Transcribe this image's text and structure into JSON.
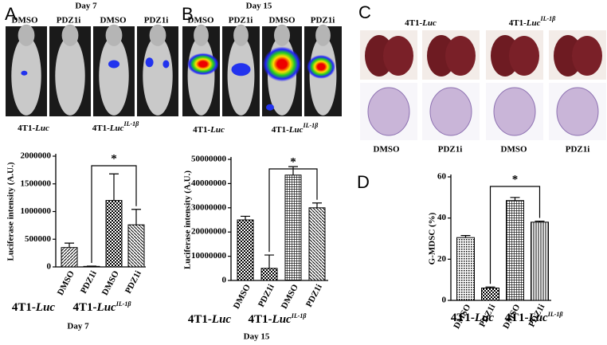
{
  "panel_a": {
    "letter": "A",
    "title": "Day 7",
    "treatments": [
      "DMSO",
      "PDZ1i",
      "DMSO",
      "PDZ1i"
    ],
    "groups": [
      {
        "prefix": "4T1-",
        "italic": "Luc"
      },
      {
        "prefix": "4T1-",
        "italic": "Luc",
        "sup": "IL-1β"
      }
    ]
  },
  "panel_b": {
    "letter": "B",
    "title": "Day 15",
    "treatments": [
      "DMSO",
      "PDZ1i",
      "DMSO",
      "PDZ1i"
    ],
    "groups": [
      {
        "prefix": "4T1-",
        "italic": "Luc"
      },
      {
        "prefix": "4T1-",
        "italic": "Luc",
        "sup": "IL-1β"
      }
    ]
  },
  "panel_c": {
    "letter": "C",
    "groups": [
      {
        "prefix": "4T1-",
        "italic": "Luc"
      },
      {
        "prefix": "4T1-",
        "italic": "Luc",
        "sup": "IL-1β"
      }
    ],
    "treatments": [
      "DMSO",
      "PDZ1i",
      "DMSO",
      "PDZ1i"
    ]
  },
  "panel_d": {
    "letter": "D"
  },
  "chart_data": [
    {
      "type": "bar",
      "ylabel": "Luciferase intensity (A.U.)",
      "xlabel": "Day 7",
      "categories": [
        "DMSO",
        "PDZ1i",
        "DMSO",
        "PDZ1i"
      ],
      "values": [
        350000,
        10000,
        1200000,
        760000
      ],
      "errors": [
        80000,
        5000,
        480000,
        280000
      ],
      "patterns": [
        "diag",
        "checker",
        "checker",
        "diag-rev"
      ],
      "groups": [
        {
          "prefix": "4T1-",
          "italic": "Luc"
        },
        {
          "prefix": "4T1-",
          "italic": "Luc",
          "sup": "IL-1β"
        }
      ],
      "significance": "*",
      "ylim": [
        0,
        2000000
      ],
      "yticks": [
        0,
        500000,
        1000000,
        1500000,
        2000000
      ]
    },
    {
      "type": "bar",
      "ylabel": "Luciferase intensity (A.U.)",
      "xlabel": "Day 15",
      "categories": [
        "DMSO",
        "PDZ1i",
        "DMSO",
        "PDZ1i"
      ],
      "values": [
        25000000,
        5000000,
        43500000,
        30000000
      ],
      "errors": [
        1500000,
        5500000,
        3500000,
        2000000
      ],
      "patterns": [
        "checker",
        "checker",
        "grid",
        "diag-rev"
      ],
      "groups": [
        {
          "prefix": "4T1-",
          "italic": "Luc"
        },
        {
          "prefix": "4T1-",
          "italic": "Luc",
          "sup": "IL-1β"
        }
      ],
      "significance": "*",
      "ylim": [
        0,
        50000000
      ],
      "yticks": [
        0,
        10000000,
        20000000,
        30000000,
        40000000,
        50000000
      ]
    },
    {
      "type": "bar",
      "ylabel": "G-MDSC (%)",
      "categories": [
        "DMSO",
        "PDZ1i",
        "DMSO",
        "PDZ1i"
      ],
      "values": [
        30.5,
        6,
        48.5,
        38
      ],
      "errors": [
        1,
        0.5,
        1.5,
        0.5
      ],
      "patterns": [
        "dots",
        "checker",
        "grid",
        "vlines"
      ],
      "groups": [
        {
          "prefix": "4T1-",
          "italic": "Luc"
        },
        {
          "prefix": "4T1-",
          "italic": "Luc",
          "sup": "IL-1β"
        }
      ],
      "significance": "*",
      "ylim": [
        0,
        60
      ],
      "yticks": [
        0,
        20,
        40,
        60
      ]
    }
  ]
}
